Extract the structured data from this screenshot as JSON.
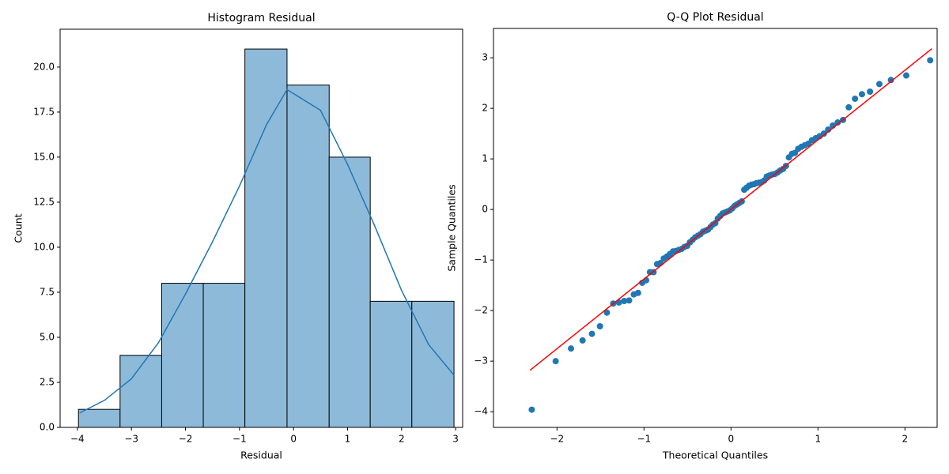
{
  "chart_data": [
    {
      "type": "histogram",
      "title": "Histogram Residual",
      "x_label": "Residual",
      "y_label": "Count",
      "bins": [
        -3.98,
        -3.21,
        -2.44,
        -1.67,
        -0.9,
        -0.12,
        0.66,
        1.42,
        2.19,
        2.97
      ],
      "values": [
        1,
        4,
        8,
        8,
        21,
        19,
        15,
        7,
        7
      ],
      "color": "#8ebad9",
      "edgecolor": "#000000",
      "kde": {
        "x": [
          -3.96,
          -3.5,
          -3.0,
          -2.5,
          -2.0,
          -1.5,
          -1.0,
          -0.5,
          -0.12,
          0.5,
          1.0,
          1.5,
          2.0,
          2.5,
          2.97
        ],
        "values": [
          0.8,
          1.5,
          2.7,
          4.7,
          7.4,
          10.3,
          13.4,
          16.8,
          18.75,
          17.6,
          14.6,
          11.2,
          7.6,
          4.6,
          2.9
        ],
        "color": "#1f77b4"
      },
      "xlim": [
        -4.32,
        3.13
      ],
      "ylim": [
        0,
        22.1
      ],
      "xticks": [
        {
          "value": -4,
          "label": "−4"
        },
        {
          "value": -3,
          "label": "−3"
        },
        {
          "value": -2,
          "label": "−2"
        },
        {
          "value": -1,
          "label": "−1"
        },
        0,
        1,
        2,
        3
      ],
      "yticks": [
        {
          "value": 0,
          "label": "0.0"
        },
        {
          "value": 2.5,
          "label": "2.5"
        },
        {
          "value": 5,
          "label": "5.0"
        },
        {
          "value": 7.5,
          "label": "7.5"
        },
        {
          "value": 10,
          "label": "10.0"
        },
        {
          "value": 12.5,
          "label": "12.5"
        },
        {
          "value": 15,
          "label": "15.0"
        },
        {
          "value": 17.5,
          "label": "17.5"
        },
        {
          "value": 20,
          "label": "20.0"
        }
      ]
    },
    {
      "type": "scatter",
      "title": "Q-Q Plot Residual",
      "x_label": "Theoretical Quantiles",
      "y_label": "Sample Quantiles",
      "x": [
        -2.29,
        -2.015,
        -1.839,
        -1.706,
        -1.598,
        -1.506,
        -1.426,
        -1.354,
        -1.288,
        -1.227,
        -1.171,
        -1.117,
        -1.068,
        -1.02,
        -0.975,
        -0.931,
        -0.89,
        -0.849,
        -0.811,
        -0.773,
        -0.736,
        -0.701,
        -0.666,
        -0.632,
        -0.599,
        -0.566,
        -0.534,
        -0.503,
        -0.472,
        -0.441,
        -0.411,
        -0.381,
        -0.351,
        -0.322,
        -0.293,
        -0.265,
        -0.236,
        -0.208,
        -0.18,
        -0.152,
        -0.124,
        -0.097,
        -0.069,
        -0.041,
        -0.014,
        0.014,
        0.041,
        0.069,
        0.097,
        0.124,
        0.152,
        0.18,
        0.208,
        0.236,
        0.265,
        0.293,
        0.322,
        0.351,
        0.381,
        0.411,
        0.441,
        0.472,
        0.503,
        0.534,
        0.566,
        0.599,
        0.632,
        0.666,
        0.701,
        0.736,
        0.773,
        0.811,
        0.849,
        0.89,
        0.931,
        0.975,
        1.02,
        1.068,
        1.117,
        1.171,
        1.227,
        1.288,
        1.354,
        1.426,
        1.506,
        1.598,
        1.706,
        1.839,
        2.015,
        2.29
      ],
      "values": [
        -3.96,
        -3.0,
        -2.75,
        -2.59,
        -2.46,
        -2.31,
        -2.04,
        -1.86,
        -1.84,
        -1.81,
        -1.8,
        -1.68,
        -1.65,
        -1.45,
        -1.4,
        -1.24,
        -1.24,
        -1.08,
        -1.06,
        -0.97,
        -0.93,
        -0.88,
        -0.83,
        -0.82,
        -0.8,
        -0.78,
        -0.74,
        -0.72,
        -0.65,
        -0.6,
        -0.55,
        -0.52,
        -0.49,
        -0.44,
        -0.42,
        -0.4,
        -0.35,
        -0.3,
        -0.27,
        -0.18,
        -0.13,
        -0.08,
        -0.06,
        -0.04,
        -0.02,
        0.02,
        0.07,
        0.1,
        0.13,
        0.16,
        0.39,
        0.43,
        0.47,
        0.49,
        0.5,
        0.52,
        0.53,
        0.54,
        0.57,
        0.65,
        0.67,
        0.69,
        0.7,
        0.73,
        0.77,
        0.8,
        0.86,
        1.03,
        1.1,
        1.12,
        1.2,
        1.24,
        1.27,
        1.3,
        1.37,
        1.41,
        1.45,
        1.5,
        1.58,
        1.66,
        1.72,
        1.77,
        2.02,
        2.19,
        2.28,
        2.33,
        2.48,
        2.56,
        2.65,
        2.95
      ],
      "color": "#1f77b4",
      "line": {
        "x": [
          -2.31,
          2.31
        ],
        "values": [
          -3.18,
          3.18
        ],
        "color": "#ff0000"
      },
      "xlim": [
        -2.73,
        2.37
      ],
      "ylim": [
        -4.31,
        3.58
      ],
      "xticks": [
        {
          "value": -2,
          "label": "−2"
        },
        {
          "value": -1,
          "label": "−1"
        },
        0,
        1,
        2
      ],
      "yticks": [
        {
          "value": -4,
          "label": "−4"
        },
        {
          "value": -3,
          "label": "−3"
        },
        {
          "value": -2,
          "label": "−2"
        },
        {
          "value": -1,
          "label": "−1"
        },
        0,
        1,
        2,
        3
      ]
    }
  ]
}
